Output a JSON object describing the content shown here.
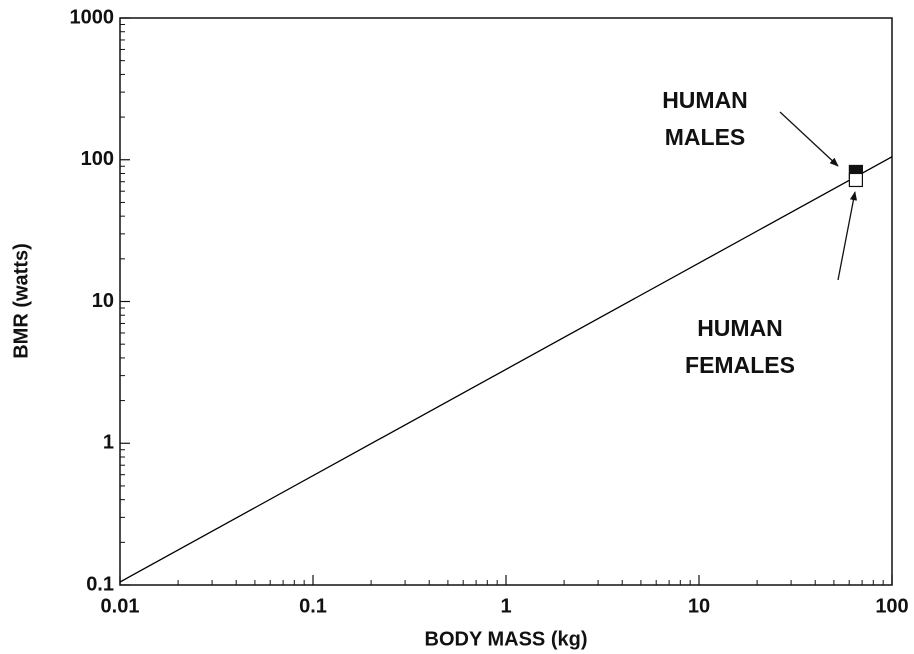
{
  "chart_data": {
    "type": "scatter",
    "x_label": "BODY MASS (kg)",
    "y_label": "BMR (watts)",
    "xlim": [
      0.01,
      100
    ],
    "ylim": [
      0.1,
      1000
    ],
    "xticks": [
      0.01,
      0.1,
      1,
      10,
      100
    ],
    "yticks": [
      0.1,
      1,
      10,
      100,
      1000
    ],
    "log_x": true,
    "log_y": true,
    "minor_ticks": true,
    "grid": false,
    "line": {
      "x": [
        0.01,
        100
      ],
      "y": [
        0.105,
        105
      ],
      "color": "#000000"
    },
    "points": [
      {
        "label": [
          "HUMAN",
          "MALES"
        ],
        "x": 65,
        "y": 82,
        "fill": "#111111"
      },
      {
        "label": [
          "HUMAN",
          "FEMALES"
        ],
        "x": 65,
        "y": 72,
        "fill": "#ffffff"
      }
    ]
  }
}
